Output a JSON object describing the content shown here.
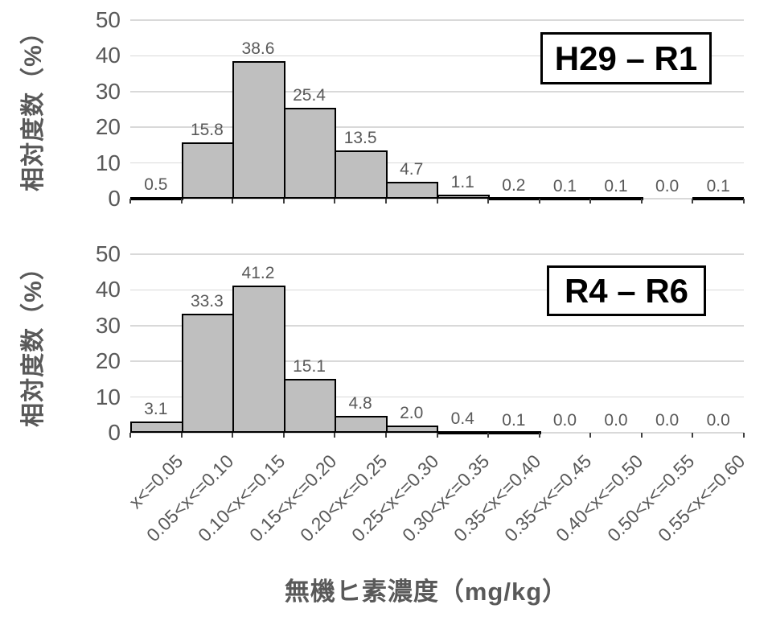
{
  "xlabel": "無機ヒ素濃度（mg/kg）",
  "colors": {
    "bar_fill": "#bfbfbf",
    "bar_border": "#000000",
    "gridline": "#d9d9d9",
    "axis_text": "#595959",
    "panel_label_text": "#000000",
    "panel_label_border": "#000000"
  },
  "chart_data": [
    {
      "type": "bar",
      "panel_label": "H29 – R1",
      "ylabel": "相対度数（%）",
      "xlabel": "無機ヒ素濃度（mg/kg）",
      "ylim": [
        0,
        50
      ],
      "yticks": [
        0,
        10,
        20,
        30,
        40,
        50
      ],
      "grid": true,
      "legend_position": "top-right",
      "categories": [
        "x<=0.05",
        "0.05<x<=0.10",
        "0.10<x<=0.15",
        "0.15<x<=0.20",
        "0.20<x<=0.25",
        "0.25<x<=0.30",
        "0.30<x<=0.35",
        "0.35<x<=0.40",
        "0.35<x<=0.45",
        "0.40<x<=0.50",
        "0.50<x<=0.55",
        "0.55<x<=0.60"
      ],
      "values": [
        0.5,
        15.8,
        38.6,
        25.4,
        13.5,
        4.7,
        1.1,
        0.2,
        0.1,
        0.1,
        0.0,
        0.1
      ]
    },
    {
      "type": "bar",
      "panel_label": "R4 – R6",
      "ylabel": "相対度数（%）",
      "xlabel": "無機ヒ素濃度（mg/kg）",
      "ylim": [
        0,
        50
      ],
      "yticks": [
        0,
        10,
        20,
        30,
        40,
        50
      ],
      "grid": true,
      "legend_position": "top-right",
      "categories": [
        "x<=0.05",
        "0.05<x<=0.10",
        "0.10<x<=0.15",
        "0.15<x<=0.20",
        "0.20<x<=0.25",
        "0.25<x<=0.30",
        "0.30<x<=0.35",
        "0.35<x<=0.40",
        "0.35<x<=0.45",
        "0.40<x<=0.50",
        "0.50<x<=0.55",
        "0.55<x<=0.60"
      ],
      "values": [
        3.1,
        33.3,
        41.2,
        15.1,
        4.8,
        2.0,
        0.4,
        0.1,
        0.0,
        0.0,
        0.0,
        0.0
      ]
    }
  ]
}
